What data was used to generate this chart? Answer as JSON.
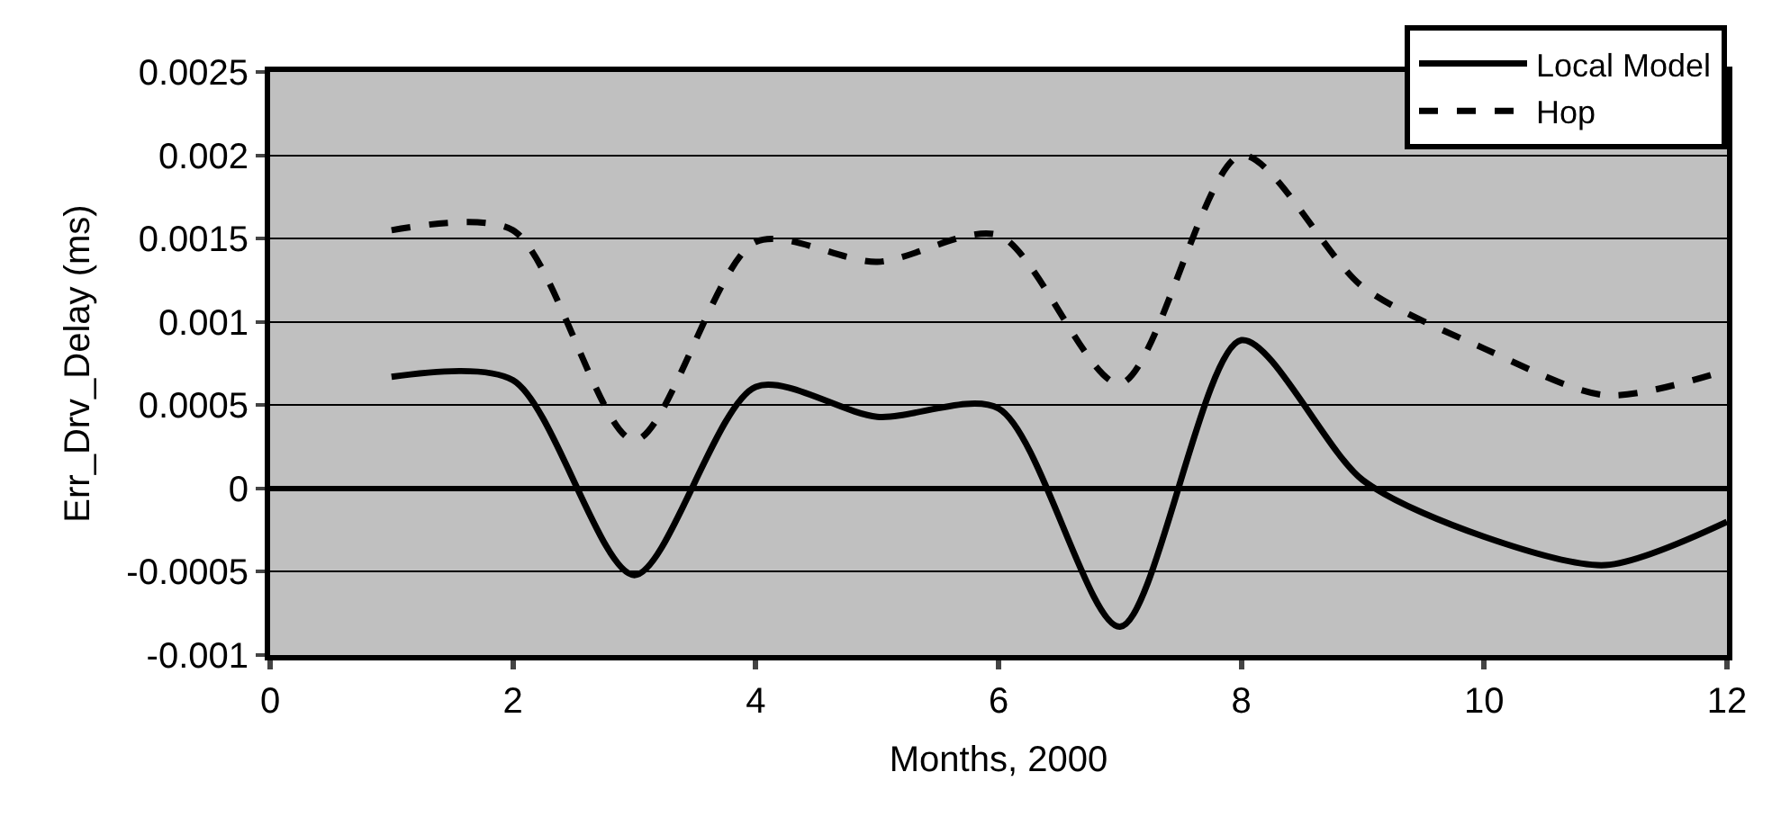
{
  "chart_data": {
    "type": "line",
    "xlabel": "Months, 2000",
    "ylabel": "Err_Drv_Delay (ms)",
    "x": [
      1,
      2,
      3,
      4,
      5,
      6,
      7,
      8,
      9,
      10,
      11,
      12
    ],
    "series": [
      {
        "name": "Local Model",
        "color": "#000000",
        "line_style": "solid",
        "values": [
          0.00067,
          0.00065,
          -0.00052,
          0.00061,
          0.00043,
          0.00048,
          -0.00083,
          0.00089,
          5e-05,
          -0.00029,
          -0.00046,
          -0.0002
        ]
      },
      {
        "name": "Hop",
        "color": "#000000",
        "line_style": "dashed",
        "values": [
          0.00155,
          0.00155,
          0.00029,
          0.00148,
          0.00136,
          0.00152,
          0.00063,
          0.002,
          0.00121,
          0.00084,
          0.00056,
          0.00071
        ]
      }
    ],
    "xlim": [
      0,
      12
    ],
    "xticks": [
      0,
      2,
      4,
      6,
      8,
      10,
      12
    ],
    "ylim": [
      -0.001,
      0.0025
    ],
    "yticks": [
      -0.001,
      -0.0005,
      0,
      0.0005,
      0.001,
      0.0015,
      0.002,
      0.0025
    ],
    "grid": "y",
    "legend": "top right",
    "marker": "none"
  }
}
